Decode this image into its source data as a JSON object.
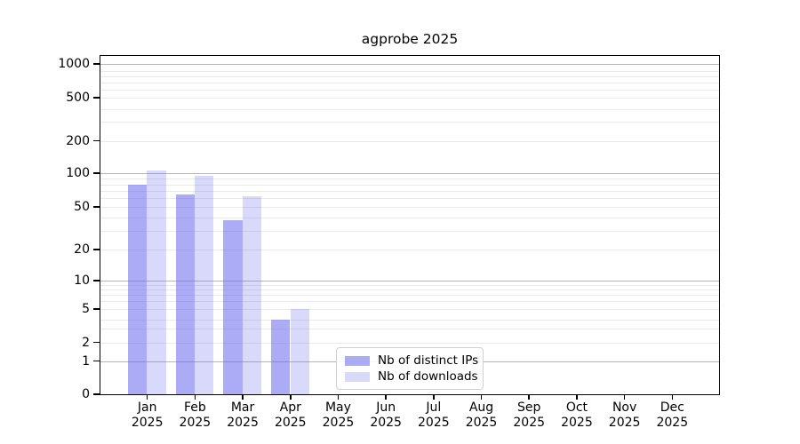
{
  "title": "agprobe 2025",
  "chart_data": {
    "type": "bar",
    "title": "agprobe 2025",
    "categories": [
      "Jan",
      "Feb",
      "Mar",
      "Apr",
      "May",
      "Jun",
      "Jul",
      "Aug",
      "Sep",
      "Oct",
      "Nov",
      "Dec"
    ],
    "category_year": "2025",
    "series": [
      {
        "name": "Nb of distinct IPs",
        "color": "#6666ee",
        "alpha": 0.55,
        "values": [
          80,
          65,
          38,
          4,
          0,
          0,
          0,
          0,
          0,
          0,
          0,
          0
        ]
      },
      {
        "name": "Nb of downloads",
        "color": "#6666ee",
        "alpha": 0.25,
        "values": [
          105,
          95,
          62,
          5,
          0,
          0,
          0,
          0,
          0,
          0,
          0,
          0
        ]
      }
    ],
    "xlabel": "",
    "ylabel": "",
    "y_scale": "symlog",
    "y_ticks": [
      0,
      1,
      2,
      5,
      10,
      20,
      50,
      100,
      200,
      500,
      1000
    ],
    "ylim": [
      0,
      1200
    ],
    "grid": "horizontal, log minors + darker majors at powers of 10",
    "legend_position": "lower center"
  },
  "colors": {
    "bar_distinct_ips_rendered": "#aaaaf5",
    "bar_downloads_rendered": "#d9d9f7",
    "grid_major": "#b6b6b6",
    "grid_minor": "#e9e9e9",
    "axis": "#000000",
    "legend_border": "#d0d0d0"
  }
}
